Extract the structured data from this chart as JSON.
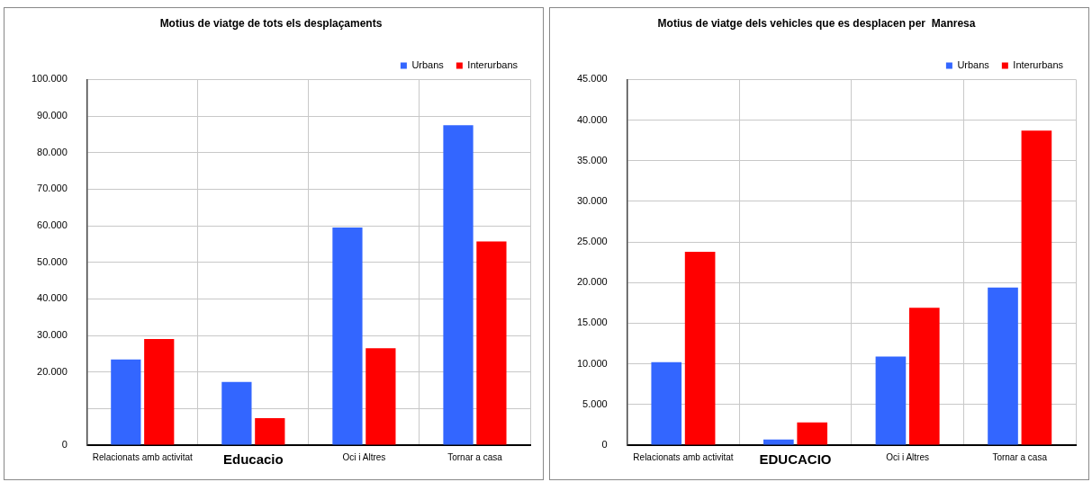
{
  "chart_data": [
    {
      "type": "bar",
      "title": "Motius de viatge de tots els desplaçaments",
      "categories": [
        "Relacionats amb activitat",
        "Educacio",
        "Oci i Altres",
        "Tornar a casa"
      ],
      "series": [
        {
          "name": "Urbans",
          "color": "#3366ff",
          "values": [
            23400,
            17300,
            59500,
            87500
          ]
        },
        {
          "name": "Interurbans",
          "color": "#ff0000",
          "values": [
            29000,
            7400,
            26500,
            55700
          ]
        }
      ],
      "ylim": [
        0,
        100000
      ],
      "yticks": [
        0,
        {
          "value": 10000,
          "label": null
        },
        {
          "value": 20000,
          "label": "20.000"
        },
        {
          "value": 30000,
          "label": "30.000"
        },
        {
          "value": 40000,
          "label": "40.000"
        },
        {
          "value": 50000,
          "label": "50.000"
        },
        {
          "value": 60000,
          "label": "60.000"
        },
        {
          "value": 70000,
          "label": "70.000"
        },
        {
          "value": 80000,
          "label": "80.000"
        },
        {
          "value": 90000,
          "label": "90.000"
        },
        {
          "value": 100000,
          "label": "100.000"
        }
      ],
      "grid": true,
      "legend": "top right"
    },
    {
      "type": "bar",
      "title": "Motius de viatge dels vehicles que es desplacen per  Manresa",
      "categories": [
        "Relacionats amb activitat",
        "EDUCACIO",
        "Oci i Altres",
        "Tornar a casa"
      ],
      "series": [
        {
          "name": "Urbans",
          "color": "#3366ff",
          "values": [
            10200,
            700,
            10900,
            19400
          ]
        },
        {
          "name": "Interurbans",
          "color": "#ff0000",
          "values": [
            23800,
            2800,
            16900,
            38700
          ]
        }
      ],
      "ylim": [
        0,
        45000
      ],
      "yticks": [
        0,
        {
          "value": 5000,
          "label": "5.000"
        },
        {
          "value": 10000,
          "label": "10.000"
        },
        {
          "value": 15000,
          "label": "15.000"
        },
        {
          "value": 20000,
          "label": "20.000"
        },
        {
          "value": 25000,
          "label": "25.000"
        },
        {
          "value": 30000,
          "label": "30.000"
        },
        {
          "value": 35000,
          "label": "35.000"
        },
        {
          "value": 40000,
          "label": "40.000"
        },
        {
          "value": 45000,
          "label": "45.000"
        }
      ],
      "grid": true,
      "legend": "top right"
    }
  ]
}
